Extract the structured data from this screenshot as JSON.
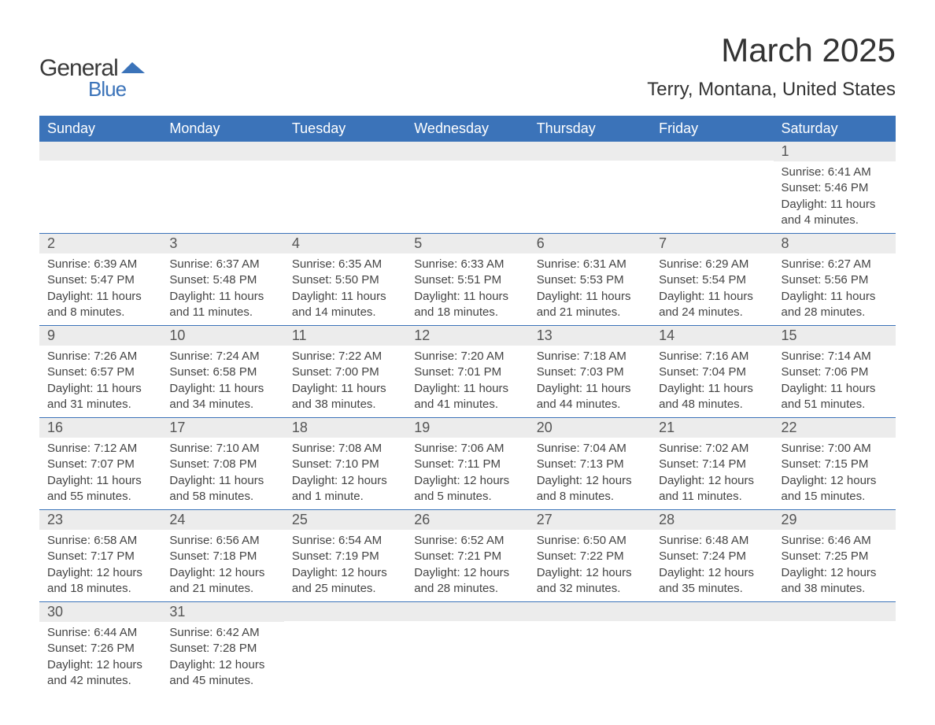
{
  "logo": {
    "word1": "General",
    "word2": "Blue",
    "shape_color": "#3b73b9",
    "text_dark": "#3a3a3a"
  },
  "title": "March 2025",
  "location": "Terry, Montana, United States",
  "colors": {
    "header_bg": "#3b73b9",
    "header_text": "#ffffff",
    "daynum_bg": "#ececec",
    "border": "#3b73b9",
    "body_text": "#444444"
  },
  "day_headers": [
    "Sunday",
    "Monday",
    "Tuesday",
    "Wednesday",
    "Thursday",
    "Friday",
    "Saturday"
  ],
  "weeks": [
    [
      null,
      null,
      null,
      null,
      null,
      null,
      {
        "n": "1",
        "sunrise": "6:41 AM",
        "sunset": "5:46 PM",
        "daylight": "11 hours and 4 minutes."
      }
    ],
    [
      {
        "n": "2",
        "sunrise": "6:39 AM",
        "sunset": "5:47 PM",
        "daylight": "11 hours and 8 minutes."
      },
      {
        "n": "3",
        "sunrise": "6:37 AM",
        "sunset": "5:48 PM",
        "daylight": "11 hours and 11 minutes."
      },
      {
        "n": "4",
        "sunrise": "6:35 AM",
        "sunset": "5:50 PM",
        "daylight": "11 hours and 14 minutes."
      },
      {
        "n": "5",
        "sunrise": "6:33 AM",
        "sunset": "5:51 PM",
        "daylight": "11 hours and 18 minutes."
      },
      {
        "n": "6",
        "sunrise": "6:31 AM",
        "sunset": "5:53 PM",
        "daylight": "11 hours and 21 minutes."
      },
      {
        "n": "7",
        "sunrise": "6:29 AM",
        "sunset": "5:54 PM",
        "daylight": "11 hours and 24 minutes."
      },
      {
        "n": "8",
        "sunrise": "6:27 AM",
        "sunset": "5:56 PM",
        "daylight": "11 hours and 28 minutes."
      }
    ],
    [
      {
        "n": "9",
        "sunrise": "7:26 AM",
        "sunset": "6:57 PM",
        "daylight": "11 hours and 31 minutes."
      },
      {
        "n": "10",
        "sunrise": "7:24 AM",
        "sunset": "6:58 PM",
        "daylight": "11 hours and 34 minutes."
      },
      {
        "n": "11",
        "sunrise": "7:22 AM",
        "sunset": "7:00 PM",
        "daylight": "11 hours and 38 minutes."
      },
      {
        "n": "12",
        "sunrise": "7:20 AM",
        "sunset": "7:01 PM",
        "daylight": "11 hours and 41 minutes."
      },
      {
        "n": "13",
        "sunrise": "7:18 AM",
        "sunset": "7:03 PM",
        "daylight": "11 hours and 44 minutes."
      },
      {
        "n": "14",
        "sunrise": "7:16 AM",
        "sunset": "7:04 PM",
        "daylight": "11 hours and 48 minutes."
      },
      {
        "n": "15",
        "sunrise": "7:14 AM",
        "sunset": "7:06 PM",
        "daylight": "11 hours and 51 minutes."
      }
    ],
    [
      {
        "n": "16",
        "sunrise": "7:12 AM",
        "sunset": "7:07 PM",
        "daylight": "11 hours and 55 minutes."
      },
      {
        "n": "17",
        "sunrise": "7:10 AM",
        "sunset": "7:08 PM",
        "daylight": "11 hours and 58 minutes."
      },
      {
        "n": "18",
        "sunrise": "7:08 AM",
        "sunset": "7:10 PM",
        "daylight": "12 hours and 1 minute."
      },
      {
        "n": "19",
        "sunrise": "7:06 AM",
        "sunset": "7:11 PM",
        "daylight": "12 hours and 5 minutes."
      },
      {
        "n": "20",
        "sunrise": "7:04 AM",
        "sunset": "7:13 PM",
        "daylight": "12 hours and 8 minutes."
      },
      {
        "n": "21",
        "sunrise": "7:02 AM",
        "sunset": "7:14 PM",
        "daylight": "12 hours and 11 minutes."
      },
      {
        "n": "22",
        "sunrise": "7:00 AM",
        "sunset": "7:15 PM",
        "daylight": "12 hours and 15 minutes."
      }
    ],
    [
      {
        "n": "23",
        "sunrise": "6:58 AM",
        "sunset": "7:17 PM",
        "daylight": "12 hours and 18 minutes."
      },
      {
        "n": "24",
        "sunrise": "6:56 AM",
        "sunset": "7:18 PM",
        "daylight": "12 hours and 21 minutes."
      },
      {
        "n": "25",
        "sunrise": "6:54 AM",
        "sunset": "7:19 PM",
        "daylight": "12 hours and 25 minutes."
      },
      {
        "n": "26",
        "sunrise": "6:52 AM",
        "sunset": "7:21 PM",
        "daylight": "12 hours and 28 minutes."
      },
      {
        "n": "27",
        "sunrise": "6:50 AM",
        "sunset": "7:22 PM",
        "daylight": "12 hours and 32 minutes."
      },
      {
        "n": "28",
        "sunrise": "6:48 AM",
        "sunset": "7:24 PM",
        "daylight": "12 hours and 35 minutes."
      },
      {
        "n": "29",
        "sunrise": "6:46 AM",
        "sunset": "7:25 PM",
        "daylight": "12 hours and 38 minutes."
      }
    ],
    [
      {
        "n": "30",
        "sunrise": "6:44 AM",
        "sunset": "7:26 PM",
        "daylight": "12 hours and 42 minutes."
      },
      {
        "n": "31",
        "sunrise": "6:42 AM",
        "sunset": "7:28 PM",
        "daylight": "12 hours and 45 minutes."
      },
      null,
      null,
      null,
      null,
      null
    ]
  ],
  "labels": {
    "sunrise": "Sunrise",
    "sunset": "Sunset",
    "daylight": "Daylight"
  }
}
